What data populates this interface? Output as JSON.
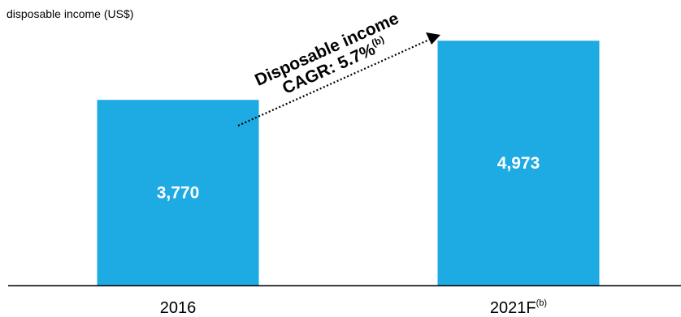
{
  "chart_data": {
    "type": "bar",
    "ylabel": "disposable income (US$)",
    "categories": [
      "2016",
      "2021F"
    ],
    "category_superscripts": [
      "",
      "(b)"
    ],
    "values": [
      3770,
      4973
    ],
    "value_labels": [
      "3,770",
      "4,973"
    ],
    "ylim": [
      0,
      5800
    ],
    "grid": false,
    "legend": "none",
    "bar_color": "#1EAAE2",
    "annotation": {
      "line1": "Disposable income",
      "line2": "CAGR: 5.7%",
      "superscript": "(b)",
      "style": "dotted arrow"
    }
  }
}
